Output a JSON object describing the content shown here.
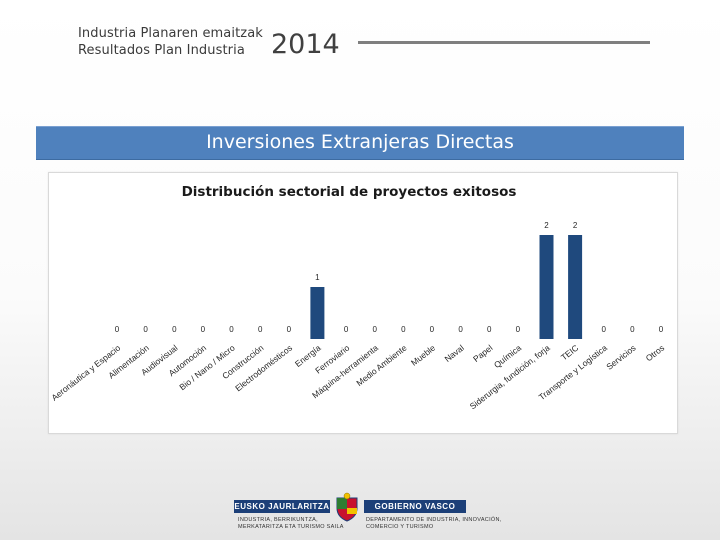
{
  "header": {
    "line1": "Industria Planaren emaitzak",
    "line2": "Resultados Plan Industria",
    "year": "2014"
  },
  "banner": {
    "title": "Inversiones Extranjeras Directas"
  },
  "colors": {
    "banner": "#4f81bd",
    "bar": "#1f497d",
    "logo": "#1c3f78"
  },
  "chart_data": {
    "type": "bar",
    "title": "Distribución sectorial de proyectos exitosos",
    "xlabel": "",
    "ylabel": "",
    "ylim": [
      0,
      2
    ],
    "grid": false,
    "legend": "none",
    "categories": [
      "Aeronáutica y Espacio",
      "Alimentación",
      "Audiovisual",
      "Automoción",
      "Bio / Nano / Micro",
      "Construcción",
      "Electrodomésticos",
      "Energía",
      "Ferroviario",
      "Máquina-herramienta",
      "Medio Ambiente",
      "Mueble",
      "Naval",
      "Papel",
      "Química",
      "Siderurgia, fundición, forja",
      "TEIC",
      "Transporte y Logística",
      "Servicios",
      "Otros"
    ],
    "values": [
      0,
      0,
      0,
      0,
      0,
      0,
      0,
      1,
      0,
      0,
      0,
      0,
      0,
      0,
      0,
      2,
      2,
      0,
      0,
      0
    ]
  },
  "footer": {
    "logo_left": "EUSKO JAURLARITZA",
    "logo_right": "GOBIERNO VASCO",
    "sub_left_1": "INDUSTRIA, BERRIKUNTZA,",
    "sub_left_2": "MERKATARITZA ETA TURISMO SAILA",
    "sub_right_1": "DEPARTAMENTO DE INDUSTRIA, INNOVACIÓN,",
    "sub_right_2": "COMERCIO Y TURISMO"
  }
}
